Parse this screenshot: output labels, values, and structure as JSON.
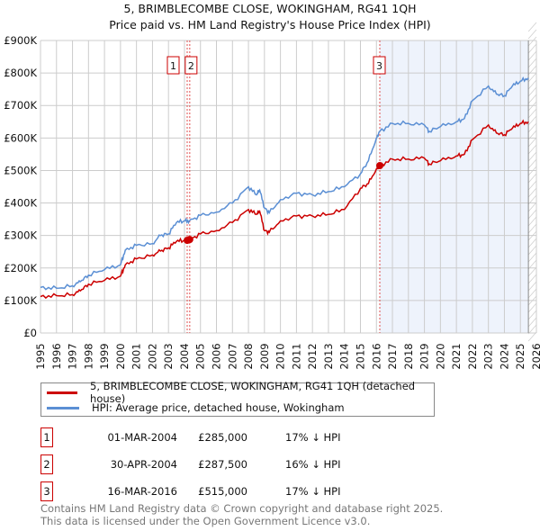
{
  "chart_data": {
    "type": "line",
    "title": "5, BRIMBLECOMBE CLOSE, WOKINGHAM, RG41 1QH",
    "subtitle": "Price paid vs. HM Land Registry's House Price Index (HPI)",
    "xlabel": "",
    "ylabel": "",
    "xlim": [
      1995,
      2026
    ],
    "ylim": [
      0,
      900000
    ],
    "grid": true,
    "x_ticks": [
      "1995",
      "1996",
      "1997",
      "1998",
      "1999",
      "2000",
      "2001",
      "2002",
      "2003",
      "2004",
      "2005",
      "2006",
      "2007",
      "2008",
      "2009",
      "2010",
      "2011",
      "2012",
      "2013",
      "2014",
      "2015",
      "2016",
      "2017",
      "2018",
      "2019",
      "2020",
      "2021",
      "2022",
      "2023",
      "2024",
      "2025",
      "2026"
    ],
    "y_ticks": [
      {
        "value": 0,
        "label": "£0"
      },
      {
        "value": 100000,
        "label": "£100K"
      },
      {
        "value": 200000,
        "label": "£200K"
      },
      {
        "value": 300000,
        "label": "£300K"
      },
      {
        "value": 400000,
        "label": "£400K"
      },
      {
        "value": 500000,
        "label": "£500K"
      },
      {
        "value": 600000,
        "label": "£600K"
      },
      {
        "value": 700000,
        "label": "£700K"
      },
      {
        "value": 800000,
        "label": "£800K"
      },
      {
        "value": 900000,
        "label": "£900K"
      }
    ],
    "shaded_range": [
      2016.2,
      2025.5
    ],
    "hatched_from": 2025.5,
    "series": [
      {
        "name": "5, BRIMBLECOMBE CLOSE, WOKINGHAM, RG41 1QH (detached house)",
        "color": "#cc0000",
        "x": [
          1995,
          1996,
          1997,
          1997.5,
          1998,
          1999,
          2000,
          2000.3,
          2001,
          2002,
          2002.5,
          2003,
          2003.5,
          2004,
          2004.3,
          2005,
          2006,
          2007,
          2008,
          2008.5,
          2008.7,
          2009,
          2009.3,
          2010,
          2011,
          2012,
          2013,
          2014,
          2015,
          2015.5,
          2016,
          2016.2,
          2017,
          2018,
          2019,
          2019.3,
          2020,
          2021,
          2021.5,
          2022,
          2023,
          2023.5,
          2024,
          2024.5,
          2025,
          2025.5
        ],
        "values": [
          112000,
          115000,
          118000,
          130000,
          150000,
          162000,
          175000,
          210000,
          228000,
          240000,
          252000,
          262000,
          282000,
          285000,
          287500,
          305000,
          315000,
          340000,
          380000,
          365000,
          375000,
          315000,
          310000,
          345000,
          360000,
          360000,
          365000,
          380000,
          445000,
          460000,
          505000,
          515000,
          535000,
          535000,
          538000,
          520000,
          530000,
          545000,
          550000,
          595000,
          640000,
          615000,
          610000,
          630000,
          645000,
          650000
        ]
      },
      {
        "name": "HPI: Average price, detached house, Wokingham",
        "color": "#5b8fd4",
        "x": [
          1995,
          1996,
          1997,
          1997.5,
          1998,
          1999,
          2000,
          2000.3,
          2001,
          2002,
          2002.5,
          2003,
          2003.5,
          2004,
          2004.3,
          2005,
          2006,
          2007,
          2008,
          2008.5,
          2008.7,
          2009,
          2009.3,
          2010,
          2011,
          2012,
          2013,
          2014,
          2015,
          2015.5,
          2016,
          2016.2,
          2017,
          2018,
          2019,
          2019.3,
          2020,
          2021,
          2021.5,
          2022,
          2023,
          2023.5,
          2024,
          2024.5,
          2025,
          2025.5
        ],
        "values": [
          140000,
          138000,
          145000,
          158000,
          178000,
          195000,
          210000,
          255000,
          270000,
          275000,
          300000,
          305000,
          340000,
          345000,
          345000,
          362000,
          372000,
          400000,
          450000,
          425000,
          440000,
          385000,
          370000,
          410000,
          430000,
          425000,
          435000,
          450000,
          490000,
          530000,
          600000,
          620000,
          645000,
          645000,
          640000,
          620000,
          635000,
          650000,
          660000,
          715000,
          760000,
          735000,
          730000,
          760000,
          775000,
          785000
        ]
      }
    ],
    "sales": [
      {
        "id": "1",
        "x": 2004.17,
        "value": 285000,
        "date": "01-MAR-2004",
        "price": "£285,000",
        "hpi": "17% ↓ HPI"
      },
      {
        "id": "2",
        "x": 2004.33,
        "value": 287500,
        "date": "30-APR-2004",
        "price": "£287,500",
        "hpi": "16% ↓ HPI"
      },
      {
        "id": "3",
        "x": 2016.21,
        "value": 515000,
        "date": "16-MAR-2016",
        "price": "£515,000",
        "hpi": "17% ↓ HPI"
      }
    ],
    "legend_position": "bottom"
  },
  "footer": {
    "line1": "Contains HM Land Registry data © Crown copyright and database right 2025.",
    "line2": "This data is licensed under the Open Government Licence v3.0."
  }
}
